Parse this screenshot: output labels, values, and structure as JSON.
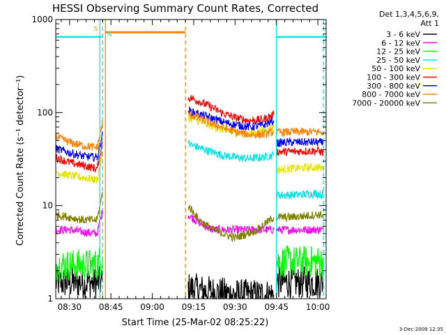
{
  "chart_data": {
    "type": "line",
    "title": "HESSI Observing Summary Count Rates, Corrected",
    "xlabel": "Start Time (25-Mar-02 08:25:22)",
    "ylabel": "Corrected Count Rate (s⁻¹ detector⁻¹)",
    "yscale": "log",
    "xlim": [
      "08:25",
      "10:03"
    ],
    "ylim": [
      1,
      1000
    ],
    "x_ticks": [
      "08:30",
      "08:45",
      "09:00",
      "09:15",
      "09:30",
      "09:45",
      "10:00"
    ],
    "y_ticks": [
      "1",
      "10",
      "100",
      "1000"
    ],
    "legend_header": [
      "Det 1,3,4,5,6,9,",
      "Att 1"
    ],
    "legend_position": "right",
    "footer_date": "3-Dec-2009 12:35",
    "flags": [
      {
        "label": "S",
        "color": "#ff8000",
        "level": 700
      },
      {
        "label": "N",
        "color": "#00e5e5",
        "level": 650
      }
    ],
    "series": [
      {
        "name": "3 - 6 keV",
        "color": "#000000",
        "segments": [
          {
            "t": [
              "08:25",
              "08:40",
              "08:42"
            ],
            "y": [
              1.5,
              1.5,
              1.5
            ]
          },
          {
            "t": [
              "09:13",
              "09:20",
              "09:30",
              "09:40",
              "09:44"
            ],
            "y": [
              1.3,
              1.2,
              1.1,
              1.1,
              1.1
            ]
          },
          {
            "t": [
              "09:45",
              "09:50",
              "10:00",
              "10:02"
            ],
            "y": [
              1.5,
              1.5,
              1.5,
              1.5
            ]
          }
        ]
      },
      {
        "name": "6 - 12 keV",
        "color": "#ff00ff",
        "segments": [
          {
            "t": [
              "08:25",
              "08:30",
              "08:35",
              "08:40",
              "08:42"
            ],
            "y": [
              5.5,
              5.5,
              5.2,
              5.0,
              9
            ]
          },
          {
            "t": [
              "09:13",
              "09:17",
              "09:22",
              "09:30",
              "09:40",
              "09:44"
            ],
            "y": [
              8,
              6.5,
              5.5,
              5.5,
              5.5,
              5.5
            ]
          },
          {
            "t": [
              "09:45",
              "09:50",
              "10:00",
              "10:02"
            ],
            "y": [
              5.5,
              5.5,
              5.5,
              5.5
            ]
          }
        ]
      },
      {
        "name": "12 - 25 keV",
        "color": "#00ff00",
        "segments": [
          {
            "t": [
              "08:25",
              "08:30",
              "08:35",
              "08:40",
              "08:42"
            ],
            "y": [
              2.3,
              2.3,
              2.3,
              2.3,
              2.8
            ]
          },
          {
            "t": [
              "09:45",
              "09:50",
              "10:00",
              "10:02"
            ],
            "y": [
              2.5,
              2.5,
              2.5,
              2.5
            ]
          }
        ]
      },
      {
        "name": "25 - 50 keV",
        "color": "#00e5e5",
        "segments": [
          {
            "t": [
              "08:25",
              "08:42"
            ],
            "y": [
              650,
              650
            ]
          },
          {
            "t": [
              "09:13",
              "09:15",
              "09:20",
              "09:25",
              "09:30",
              "09:35",
              "09:40",
              "09:44"
            ],
            "y": [
              46,
              44,
              39,
              35,
              33,
              32,
              33,
              35
            ]
          },
          {
            "t": [
              "09:45",
              "09:50",
              "10:00",
              "10:02"
            ],
            "y": [
              13,
              13,
              13.5,
              13
            ]
          },
          {
            "t": [
              "09:45",
              "10:03"
            ],
            "y": [
              650,
              650
            ]
          }
        ]
      },
      {
        "name": "50 - 100 keV",
        "color": "#e5e500",
        "segments": [
          {
            "t": [
              "08:25",
              "08:30",
              "08:35",
              "08:40",
              "08:42"
            ],
            "y": [
              23,
              21,
              20,
              19,
              38
            ]
          },
          {
            "t": [
              "09:13",
              "09:15",
              "09:20",
              "09:25",
              "09:30",
              "09:35",
              "09:40",
              "09:44"
            ],
            "y": [
              88,
              85,
              74,
              66,
              61,
              60,
              63,
              70
            ]
          },
          {
            "t": [
              "09:45",
              "09:50",
              "10:00",
              "10:02"
            ],
            "y": [
              24,
              25,
              26,
              25
            ]
          }
        ]
      },
      {
        "name": "100 - 300 keV",
        "color": "#ff0000",
        "segments": [
          {
            "t": [
              "08:25",
              "08:30",
              "08:35",
              "08:40",
              "08:42"
            ],
            "y": [
              33,
              29,
              27,
              25,
              48
            ]
          },
          {
            "t": [
              "09:13",
              "09:15",
              "09:20",
              "09:25",
              "09:30",
              "09:35",
              "09:40",
              "09:44"
            ],
            "y": [
              145,
              140,
              120,
              100,
              88,
              82,
              84,
              95
            ]
          },
          {
            "t": [
              "09:45",
              "09:50",
              "10:00",
              "10:02"
            ],
            "y": [
              38,
              38,
              39,
              37
            ]
          }
        ]
      },
      {
        "name": "300 - 800 keV",
        "color": "#0000ff",
        "segments": [
          {
            "t": [
              "08:25",
              "08:30",
              "08:35",
              "08:40",
              "08:42"
            ],
            "y": [
              41,
              37,
              34,
              33,
              60
            ]
          },
          {
            "t": [
              "09:13",
              "09:15",
              "09:20",
              "09:25",
              "09:30",
              "09:35",
              "09:40",
              "09:44"
            ],
            "y": [
              105,
              100,
              90,
              80,
              74,
              70,
              73,
              82
            ]
          },
          {
            "t": [
              "09:45",
              "09:50",
              "10:00",
              "10:02"
            ],
            "y": [
              47,
              48,
              48,
              47
            ]
          }
        ]
      },
      {
        "name": "800 - 7000 keV",
        "color": "#ff8000",
        "segments": [
          {
            "t": [
              "08:25",
              "08:30",
              "08:35",
              "08:40",
              "08:42"
            ],
            "y": [
              55,
              48,
              44,
              42,
              80
            ]
          },
          {
            "t": [
              "09:13",
              "09:15",
              "09:20",
              "09:25",
              "09:30",
              "09:35",
              "09:40",
              "09:44"
            ],
            "y": [
              95,
              92,
              80,
              70,
              62,
              58,
              58,
              62
            ]
          },
          {
            "t": [
              "09:45",
              "09:50",
              "10:00",
              "10:02"
            ],
            "y": [
              61,
              62,
              62,
              61
            ]
          }
        ]
      },
      {
        "name": "7000 - 20000 keV",
        "color": "#808000",
        "segments": [
          {
            "t": [
              "08:25",
              "08:30",
              "08:35",
              "08:40",
              "08:42"
            ],
            "y": [
              8,
              7.5,
              7,
              7,
              14
            ]
          },
          {
            "t": [
              "09:13",
              "09:17",
              "09:22",
              "09:30",
              "09:38",
              "09:44"
            ],
            "y": [
              10,
              7,
              5.5,
              4.5,
              5.5,
              7.5
            ]
          },
          {
            "t": [
              "09:45",
              "09:50",
              "10:00",
              "10:02"
            ],
            "y": [
              7.5,
              7.5,
              8,
              8
            ]
          }
        ]
      }
    ],
    "annotations": [
      {
        "type": "vline",
        "t": "08:41",
        "color": "#00e5e5",
        "style": "solid"
      },
      {
        "type": "vline",
        "t": "08:42",
        "color": "#00e5e5",
        "style": "dashed"
      },
      {
        "type": "vline",
        "t": "08:43",
        "color": "#ff8000",
        "style": "solid"
      },
      {
        "type": "vline",
        "t": "09:12",
        "color": "#ff8000",
        "style": "dashed"
      },
      {
        "type": "vline",
        "t": "09:45",
        "color": "#00e5e5",
        "style": "solid"
      },
      {
        "type": "vline",
        "t": "10:02",
        "color": "#00e5e5",
        "style": "dashed"
      },
      {
        "type": "hseg",
        "t0": "08:43",
        "t1": "09:12",
        "level": 730,
        "color": "#ff8000"
      }
    ]
  }
}
